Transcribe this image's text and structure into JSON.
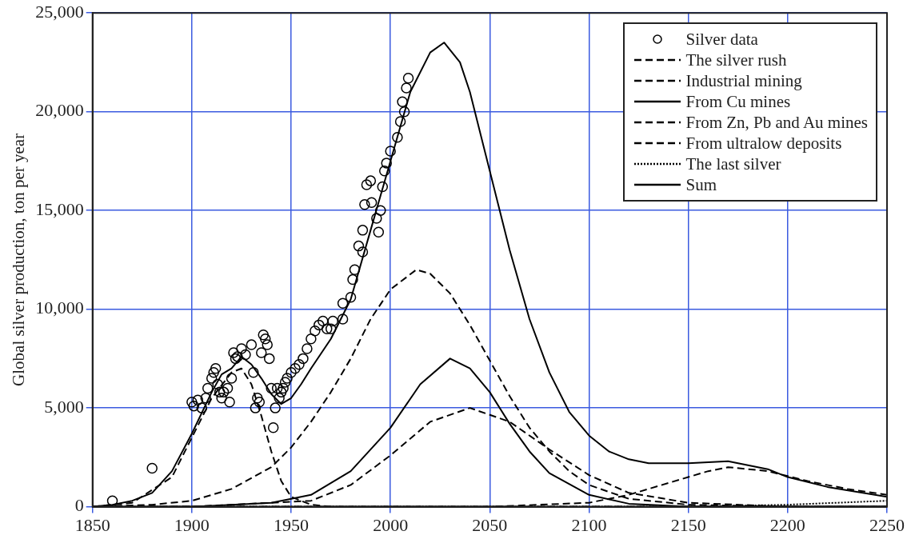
{
  "chart_data": {
    "type": "line",
    "ylabel": "Global silver production, ton per year",
    "xlim": [
      1850,
      2250
    ],
    "xticks": [
      1850,
      1900,
      1950,
      2000,
      2050,
      2100,
      2150,
      2200,
      2250
    ],
    "ylim": [
      0,
      25000
    ],
    "yticks": [
      {
        "value": 0,
        "label": "0"
      },
      {
        "value": 5000,
        "label": "5,000"
      },
      {
        "value": 10000,
        "label": "10,000"
      },
      {
        "value": 15000,
        "label": "15,000"
      },
      {
        "value": 20000,
        "label": "20,000"
      },
      {
        "value": 25000,
        "label": "25,000"
      }
    ],
    "grid": true,
    "legend": "top right",
    "series": [
      {
        "name": "Silver data",
        "type": "scatter",
        "marker": "circle",
        "color": "#000000",
        "x": [
          1860,
          1880,
          1900,
          1901,
          1903,
          1905,
          1907,
          1908,
          1910,
          1911,
          1912,
          1913,
          1914,
          1915,
          1916,
          1918,
          1919,
          1920,
          1921,
          1922,
          1923,
          1925,
          1927,
          1930,
          1931,
          1932,
          1933,
          1934,
          1935,
          1936,
          1937,
          1938,
          1939,
          1940,
          1941,
          1942,
          1943,
          1944,
          1945,
          1946,
          1947,
          1948,
          1950,
          1952,
          1954,
          1956,
          1958,
          1960,
          1962,
          1964,
          1966,
          1968,
          1970,
          1971,
          1976,
          1976,
          1980,
          1981,
          1982,
          1984,
          1986,
          1986,
          1987,
          1988,
          1990,
          1990.5,
          1993,
          1994,
          1995,
          1996,
          1997,
          1998,
          2000,
          2003.5,
          2005,
          2006,
          2007,
          2008,
          2009
        ],
        "values": [
          300,
          1950,
          5300,
          5100,
          5400,
          5000,
          5500,
          6000,
          6500,
          6800,
          7000,
          6200,
          5800,
          5500,
          5800,
          6000,
          5300,
          6500,
          7800,
          7500,
          7600,
          8000,
          7700,
          8200,
          6800,
          5000,
          5500,
          5300,
          7800,
          8700,
          8500,
          8200,
          7500,
          6000,
          4000,
          5000,
          6000,
          5500,
          5800,
          6000,
          6300,
          6500,
          6800,
          7000,
          7200,
          7500,
          8000,
          8500,
          8900,
          9200,
          9400,
          9000,
          9000,
          9400,
          10300,
          9500,
          10600,
          11500,
          12000,
          13200,
          12900,
          14000,
          15300,
          16300,
          16500,
          15400,
          14600,
          13900,
          15000,
          16200,
          17000,
          17400,
          18000,
          18700,
          19500,
          20500,
          20000,
          21200,
          21700
        ]
      },
      {
        "name": "The silver rush",
        "line_style": "dashed",
        "marker": "none",
        "color": "#000000",
        "x": [
          1850,
          1870,
          1890,
          1900,
          1910,
          1920,
          1925,
          1930,
          1935,
          1940,
          1945,
          1950,
          1960,
          1970,
          2250
        ],
        "values": [
          0,
          200,
          1500,
          3500,
          5500,
          6800,
          7000,
          6200,
          4600,
          2800,
          1300,
          500,
          100,
          0,
          0
        ]
      },
      {
        "name": "Industrial mining",
        "line_style": "dashed",
        "marker": "none",
        "color": "#000000",
        "x": [
          1850,
          1880,
          1900,
          1920,
          1940,
          1950,
          1960,
          1970,
          1980,
          1990,
          2000,
          2013,
          2020,
          2030,
          2040,
          2050,
          2060,
          2070,
          2080,
          2090,
          2100,
          2120,
          2150,
          2200,
          2250
        ],
        "values": [
          0,
          100,
          300,
          900,
          2000,
          3000,
          4300,
          5800,
          7500,
          9500,
          11000,
          12000,
          11800,
          10800,
          9200,
          7400,
          5600,
          4000,
          2800,
          1800,
          1100,
          400,
          100,
          0,
          0
        ]
      },
      {
        "name": "From Cu mines",
        "line_style": "solid",
        "marker": "none",
        "color": "#000000",
        "x": [
          1850,
          1900,
          1940,
          1960,
          1980,
          2000,
          2015,
          2030,
          2040,
          2050,
          2060,
          2070,
          2080,
          2100,
          2120,
          2150,
          2250
        ],
        "values": [
          0,
          0,
          200,
          600,
          1800,
          4000,
          6200,
          7500,
          7000,
          5800,
          4200,
          2800,
          1700,
          600,
          150,
          0,
          0
        ]
      },
      {
        "name": "From Zn, Pb and Au mines",
        "line_style": "dashed",
        "marker": "none",
        "color": "#000000",
        "x": [
          1850,
          1900,
          1960,
          1980,
          2000,
          2020,
          2040,
          2060,
          2080,
          2100,
          2120,
          2150,
          2200,
          2250
        ],
        "values": [
          0,
          0,
          300,
          1100,
          2600,
          4300,
          5000,
          4300,
          2900,
          1600,
          700,
          200,
          0,
          0
        ]
      },
      {
        "name": "From ultralow deposits",
        "line_style": "dashed",
        "marker": "none",
        "color": "#000000",
        "x": [
          1850,
          2050,
          2100,
          2120,
          2140,
          2160,
          2170,
          2190,
          2210,
          2230,
          2250
        ],
        "values": [
          0,
          0,
          200,
          600,
          1200,
          1800,
          2000,
          1800,
          1300,
          900,
          600
        ]
      },
      {
        "name": "The last silver",
        "line_style": "dotted",
        "marker": "none",
        "color": "#000000",
        "x": [
          1850,
          2150,
          2200,
          2250
        ],
        "values": [
          0,
          0,
          100,
          300
        ]
      },
      {
        "name": "Sum",
        "line_style": "solid",
        "marker": "none",
        "color": "#000000",
        "x": [
          1850,
          1860,
          1870,
          1880,
          1890,
          1900,
          1910,
          1915,
          1920,
          1925,
          1930,
          1935,
          1940,
          1945,
          1950,
          1955,
          1960,
          1970,
          1980,
          1990,
          2000,
          2010,
          2020,
          2027,
          2035,
          2040,
          2050,
          2060,
          2070,
          2080,
          2090,
          2100,
          2110,
          2120,
          2130,
          2150,
          2170,
          2190,
          2200,
          2220,
          2250
        ],
        "values": [
          0,
          100,
          300,
          700,
          1800,
          3700,
          5800,
          6700,
          7000,
          7600,
          7200,
          6500,
          5700,
          5200,
          5500,
          6200,
          7000,
          8500,
          10500,
          14000,
          17500,
          21000,
          23000,
          23500,
          22500,
          21000,
          17000,
          13000,
          9500,
          6800,
          4800,
          3600,
          2800,
          2400,
          2200,
          2200,
          2300,
          1900,
          1500,
          1000,
          500
        ]
      }
    ]
  }
}
